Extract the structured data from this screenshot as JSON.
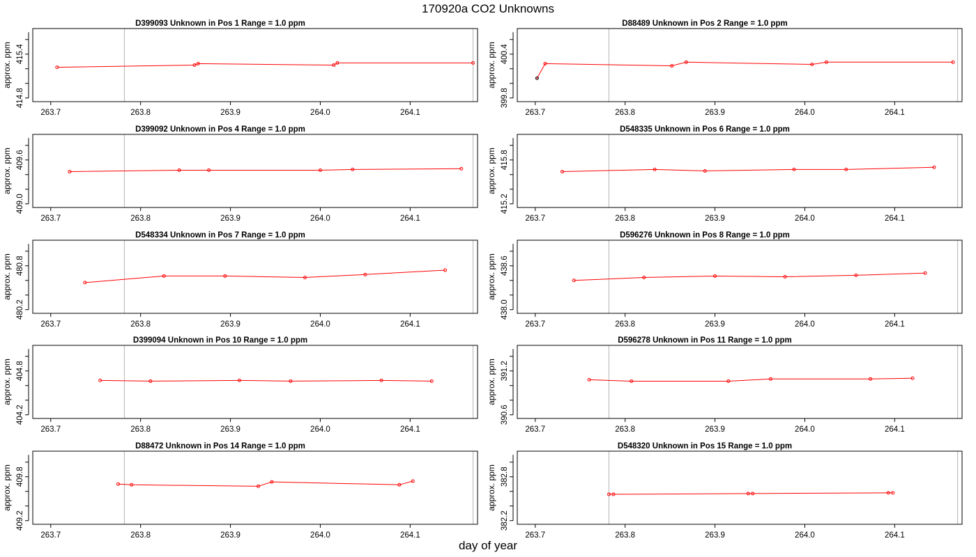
{
  "figure": {
    "title": "170920a  CO2 Unknowns",
    "xlabel": "day of year"
  },
  "colors": {
    "series": "#ff0000",
    "frame": "#000000",
    "refline": "#bebebe",
    "first_point_edge": "#000000"
  },
  "chart_data": [
    {
      "type": "line",
      "title": "D399093    Unknown in Pos 1         Range = 1.0 ppm",
      "ylabel": "approx. ppm",
      "xlim": [
        263.68,
        264.175
      ],
      "ylim": [
        414.75,
        415.75
      ],
      "xticks": [
        "263.7",
        "263.8",
        "263.9",
        "264.0",
        "264.1"
      ],
      "yticks": [
        "414.8",
        "415.4"
      ],
      "refx": [
        263.782,
        264.17
      ],
      "x": [
        263.707,
        263.86,
        263.864,
        264.015,
        264.019,
        264.17
      ],
      "y": [
        415.22,
        415.25,
        415.27,
        415.25,
        415.28,
        415.28
      ]
    },
    {
      "type": "line",
      "title": "D88489    Unknown in Pos 2         Range = 1.0 ppm",
      "ylabel": "approx. ppm",
      "xlim": [
        263.68,
        264.175
      ],
      "ylim": [
        399.75,
        400.75
      ],
      "xticks": [
        "263.7",
        "263.8",
        "263.9",
        "264.0",
        "264.1"
      ],
      "yticks": [
        "399.8",
        "400.4"
      ],
      "refx": [
        263.782,
        264.17
      ],
      "x": [
        263.702,
        263.711,
        263.852,
        263.868,
        264.008,
        264.024,
        264.165
      ],
      "y": [
        400.07,
        400.27,
        400.24,
        400.29,
        400.26,
        400.29,
        400.29
      ]
    },
    {
      "type": "line",
      "title": "D399092    Unknown in Pos 4         Range = 1.0 ppm",
      "ylabel": "approx. ppm",
      "xlim": [
        263.68,
        264.175
      ],
      "ylim": [
        408.95,
        409.95
      ],
      "xticks": [
        "263.7",
        "263.8",
        "263.9",
        "264.0",
        "264.1"
      ],
      "yticks": [
        "409.0",
        "409.6"
      ],
      "refx": [
        263.782,
        264.17
      ],
      "x": [
        263.721,
        263.843,
        263.876,
        264.0,
        264.036,
        264.157
      ],
      "y": [
        409.44,
        409.46,
        409.46,
        409.46,
        409.47,
        409.48
      ]
    },
    {
      "type": "line",
      "title": "D548335    Unknown in Pos 6         Range = 1.0 ppm",
      "ylabel": "approx. ppm",
      "xlim": [
        263.68,
        264.175
      ],
      "ylim": [
        415.15,
        416.15
      ],
      "xticks": [
        "263.7",
        "263.8",
        "263.9",
        "264.0",
        "264.1"
      ],
      "yticks": [
        "415.2",
        "415.8"
      ],
      "refx": [
        263.782,
        264.17
      ],
      "x": [
        263.73,
        263.833,
        263.889,
        263.988,
        264.046,
        264.144
      ],
      "y": [
        415.64,
        415.67,
        415.65,
        415.67,
        415.67,
        415.7
      ]
    },
    {
      "type": "line",
      "title": "D548334    Unknown in Pos 7         Range = 1.0 ppm",
      "ylabel": "approx. ppm",
      "xlim": [
        263.68,
        264.175
      ],
      "ylim": [
        480.15,
        481.15
      ],
      "xticks": [
        "263.7",
        "263.8",
        "263.9",
        "264.0",
        "264.1"
      ],
      "yticks": [
        "480.2",
        "480.8"
      ],
      "refx": [
        263.782,
        264.17
      ],
      "x": [
        263.738,
        263.826,
        263.894,
        263.983,
        264.05,
        264.139
      ],
      "y": [
        480.57,
        480.66,
        480.66,
        480.64,
        480.68,
        480.74
      ]
    },
    {
      "type": "line",
      "title": "D596276    Unknown in Pos 8         Range = 1.0 ppm",
      "ylabel": "approx. ppm",
      "xlim": [
        263.68,
        264.175
      ],
      "ylim": [
        437.95,
        438.95
      ],
      "xticks": [
        "263.7",
        "263.8",
        "263.9",
        "264.0",
        "264.1"
      ],
      "yticks": [
        "438.0",
        "438.6"
      ],
      "refx": [
        263.782,
        264.17
      ],
      "x": [
        263.743,
        263.821,
        263.9,
        263.978,
        264.057,
        264.134
      ],
      "y": [
        438.4,
        438.44,
        438.46,
        438.45,
        438.47,
        438.5
      ]
    },
    {
      "type": "line",
      "title": "D399094    Unknown in Pos 10         Range = 1.0 ppm",
      "ylabel": "approx. ppm",
      "xlim": [
        263.68,
        264.175
      ],
      "ylim": [
        404.15,
        405.15
      ],
      "xticks": [
        "263.7",
        "263.8",
        "263.9",
        "264.0",
        "264.1"
      ],
      "yticks": [
        "404.2",
        "404.8"
      ],
      "refx": [
        263.782,
        264.17
      ],
      "x": [
        263.755,
        263.811,
        263.91,
        263.967,
        264.068,
        264.124
      ],
      "y": [
        404.67,
        404.66,
        404.67,
        404.66,
        404.67,
        404.66
      ]
    },
    {
      "type": "line",
      "title": "D596278    Unknown in Pos 11         Range = 1.0 ppm",
      "ylabel": "approx. ppm",
      "xlim": [
        263.68,
        264.175
      ],
      "ylim": [
        390.55,
        391.55
      ],
      "xticks": [
        "263.7",
        "263.8",
        "263.9",
        "264.0",
        "264.1"
      ],
      "yticks": [
        "390.6",
        "391.2"
      ],
      "refx": [
        263.782,
        264.17
      ],
      "x": [
        263.76,
        263.807,
        263.915,
        263.962,
        264.073,
        264.12
      ],
      "y": [
        391.08,
        391.06,
        391.06,
        391.09,
        391.09,
        391.1
      ]
    },
    {
      "type": "line",
      "title": "D88472    Unknown in Pos 14         Range = 1.0 ppm",
      "ylabel": "approx. ppm",
      "xlim": [
        263.68,
        264.175
      ],
      "ylim": [
        409.15,
        410.15
      ],
      "xticks": [
        "263.7",
        "263.8",
        "263.9",
        "264.0",
        "264.1"
      ],
      "yticks": [
        "409.2",
        "409.8"
      ],
      "refx": [
        263.782,
        264.17
      ],
      "x": [
        263.775,
        263.79,
        263.931,
        263.946,
        264.088,
        264.103
      ],
      "y": [
        409.7,
        409.69,
        409.67,
        409.73,
        409.69,
        409.74
      ]
    },
    {
      "type": "line",
      "title": "D548320    Unknown in Pos 15         Range = 1.0 ppm",
      "ylabel": "approx. ppm",
      "xlim": [
        263.68,
        264.175
      ],
      "ylim": [
        382.15,
        383.15
      ],
      "xticks": [
        "263.7",
        "263.8",
        "263.9",
        "264.0",
        "264.1"
      ],
      "yticks": [
        "382.2",
        "382.8"
      ],
      "refx": [
        263.782,
        264.17
      ],
      "x": [
        263.782,
        263.787,
        263.937,
        263.942,
        264.093,
        264.098
      ],
      "y": [
        382.56,
        382.56,
        382.57,
        382.57,
        382.58,
        382.58
      ]
    }
  ]
}
